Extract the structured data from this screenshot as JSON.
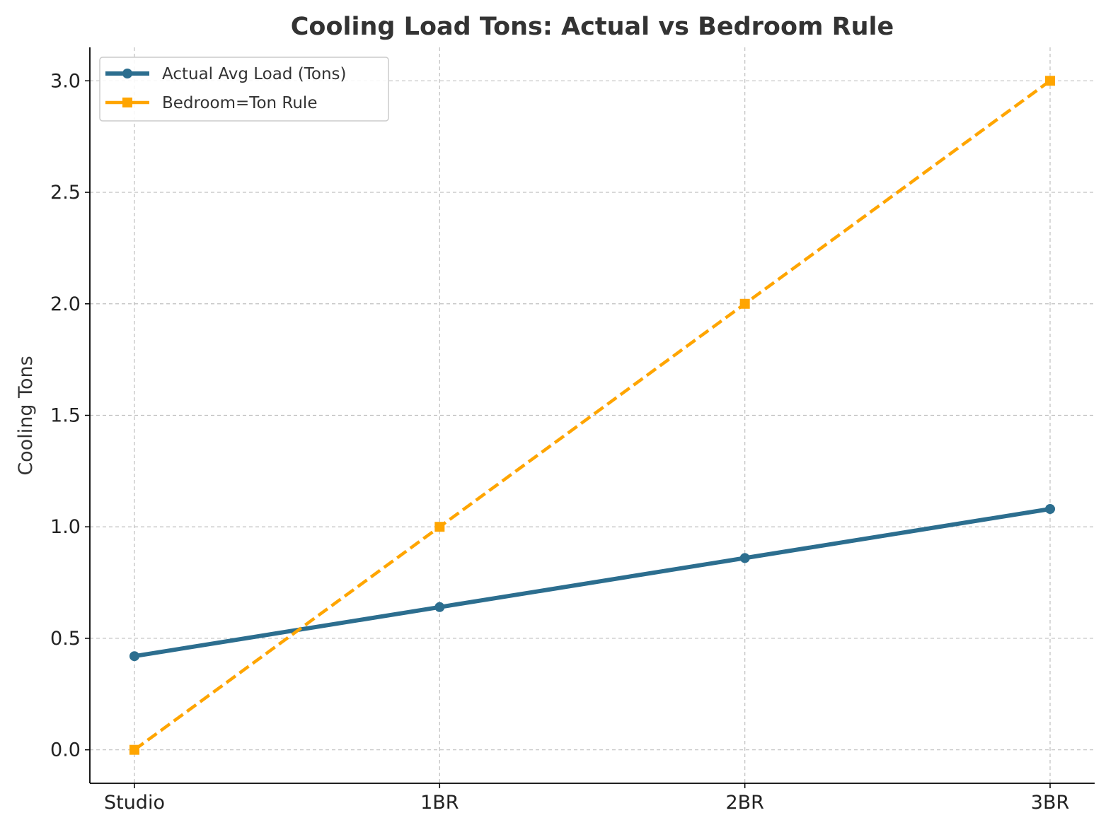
{
  "chart_data": {
    "type": "line",
    "title": "Cooling Load Tons: Actual vs Bedroom Rule",
    "xlabel": "",
    "ylabel": "Cooling Tons",
    "categories": [
      "Studio",
      "1BR",
      "2BR",
      "3BR"
    ],
    "yticks": [
      "0.0",
      "0.5",
      "1.0",
      "1.5",
      "2.0",
      "2.5",
      "3.0"
    ],
    "ylim": [
      -0.15,
      3.15
    ],
    "grid": true,
    "legend_position": "top-left",
    "series": [
      {
        "name": "Actual Avg Load (Tons)",
        "values": [
          0.42,
          0.64,
          0.86,
          1.08
        ],
        "color": "#2c6e8f",
        "style": "solid",
        "marker": "circle"
      },
      {
        "name": "Bedroom=Ton Rule",
        "values": [
          0,
          1,
          2,
          3
        ],
        "color": "#ffa500",
        "style": "dashed",
        "marker": "square"
      }
    ]
  }
}
